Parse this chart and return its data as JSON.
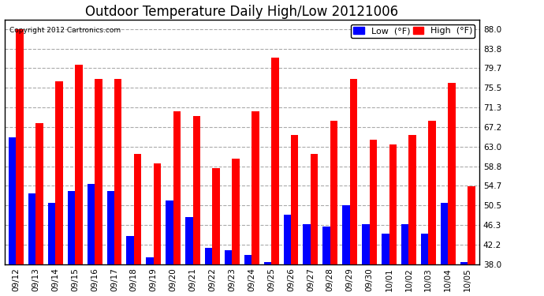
{
  "title": "Outdoor Temperature Daily High/Low 20121006",
  "copyright": "Copyright 2012 Cartronics.com",
  "legend_low_label": "Low  (°F)",
  "legend_high_label": "High  (°F)",
  "dates": [
    "09/12",
    "09/13",
    "09/14",
    "09/15",
    "09/16",
    "09/17",
    "09/18",
    "09/19",
    "09/20",
    "09/21",
    "09/22",
    "09/23",
    "09/24",
    "09/25",
    "09/26",
    "09/27",
    "09/28",
    "09/29",
    "09/30",
    "10/01",
    "10/02",
    "10/03",
    "10/04",
    "10/05"
  ],
  "high": [
    88.0,
    68.0,
    77.0,
    80.5,
    77.5,
    77.5,
    61.5,
    59.5,
    70.5,
    69.5,
    58.5,
    60.5,
    70.5,
    82.0,
    65.5,
    61.5,
    68.5,
    77.5,
    64.5,
    63.5,
    65.5,
    68.5,
    76.5,
    54.5
  ],
  "low": [
    65.0,
    53.0,
    51.0,
    53.5,
    55.0,
    53.5,
    44.0,
    39.5,
    51.5,
    48.0,
    41.5,
    41.0,
    40.0,
    38.5,
    48.5,
    46.5,
    46.0,
    50.5,
    46.5,
    44.5,
    46.5,
    44.5,
    51.0,
    38.5
  ],
  "ylim_min": 38.0,
  "ylim_max": 90.0,
  "yticks": [
    38.0,
    42.2,
    46.3,
    50.5,
    54.7,
    58.8,
    63.0,
    67.2,
    71.3,
    75.5,
    79.7,
    83.8,
    88.0
  ],
  "bar_color_low": "#0000ff",
  "bar_color_high": "#ff0000",
  "background_color": "#ffffff",
  "plot_bg_color": "#ffffff",
  "grid_color": "#aaaaaa",
  "bar_width": 0.38,
  "title_fontsize": 12,
  "tick_fontsize": 7.5,
  "legend_fontsize": 8
}
